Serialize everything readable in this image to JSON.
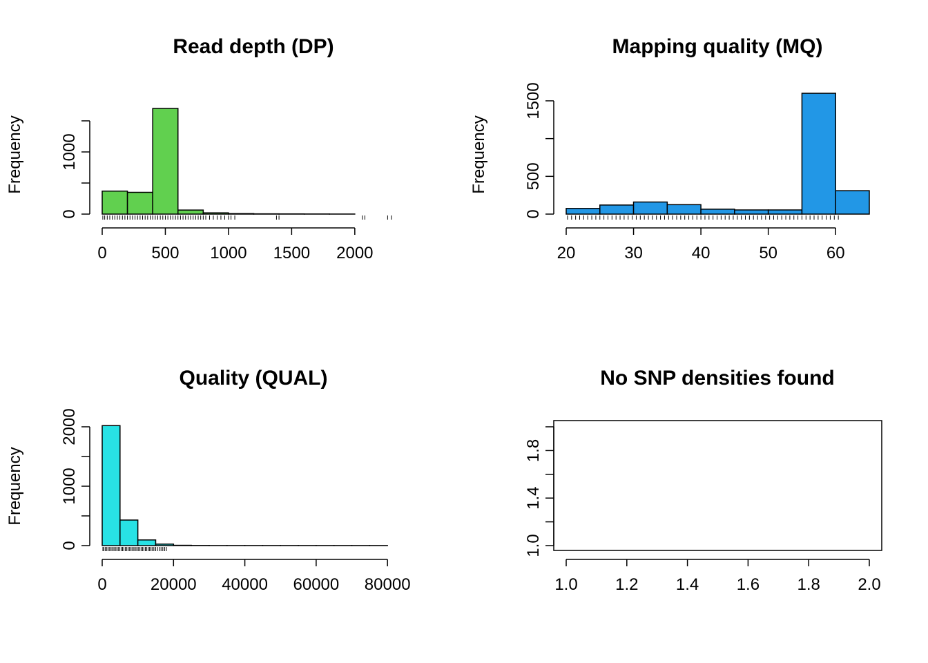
{
  "chart_data": [
    {
      "type": "bar",
      "title": "Read depth (DP)",
      "xlabel": "",
      "ylabel": "Frequency",
      "color": "#61d04f",
      "bin_edges": [
        0,
        200,
        400,
        600,
        800,
        1000,
        1200,
        1400,
        1600,
        1800,
        2000
      ],
      "values": [
        370,
        350,
        1700,
        65,
        20,
        8,
        4,
        3,
        2,
        1
      ],
      "xlim": [
        0,
        2400
      ],
      "ylim": [
        0,
        1700
      ],
      "x_ticks": [
        0,
        500,
        1000,
        1500,
        2000
      ],
      "x_tick_labels": [
        "0",
        "500",
        "1000",
        "1500",
        "2000"
      ],
      "y_ticks": [
        0,
        500,
        1000,
        1500
      ],
      "y_tick_labels": [
        "0",
        "",
        "1000",
        ""
      ],
      "rug": [
        5,
        20,
        40,
        60,
        80,
        100,
        120,
        140,
        160,
        180,
        200,
        220,
        240,
        260,
        280,
        300,
        320,
        340,
        360,
        380,
        400,
        420,
        440,
        460,
        480,
        500,
        520,
        540,
        560,
        580,
        600,
        620,
        640,
        660,
        680,
        700,
        720,
        740,
        760,
        780,
        800,
        820,
        850,
        880,
        910,
        940,
        970,
        1000,
        1020,
        1050,
        1380,
        1400,
        2060,
        2080,
        2260,
        2290
      ]
    },
    {
      "type": "bar",
      "title": "Mapping quality (MQ)",
      "xlabel": "",
      "ylabel": "Frequency",
      "color": "#2297e6",
      "bin_edges": [
        20,
        25,
        30,
        35,
        40,
        45,
        50,
        55,
        60,
        65
      ],
      "values": [
        75,
        120,
        160,
        125,
        65,
        55,
        55,
        1600,
        310
      ],
      "xlim": [
        20,
        65
      ],
      "ylim": [
        0,
        1500
      ],
      "x_ticks": [
        20,
        30,
        40,
        50,
        60
      ],
      "x_tick_labels": [
        "20",
        "30",
        "40",
        "50",
        "60"
      ],
      "y_ticks": [
        0,
        500,
        1000,
        1500
      ],
      "y_tick_labels": [
        "0",
        "500",
        "",
        "1500"
      ],
      "rug": [
        20.2,
        20.8,
        21.4,
        22,
        22.6,
        23.2,
        23.8,
        24.4,
        25,
        25.6,
        26.2,
        26.8,
        27.4,
        28,
        28.6,
        29.2,
        29.8,
        30.4,
        31,
        31.6,
        32.2,
        32.8,
        33.4,
        34,
        34.6,
        35.2,
        35.8,
        36.4,
        37,
        37.6,
        38.2,
        38.8,
        39.4,
        40,
        40.6,
        41.2,
        41.8,
        42.4,
        43,
        43.6,
        44.2,
        44.8,
        45.4,
        46,
        46.6,
        47.2,
        47.8,
        48.4,
        49,
        49.6,
        50.2,
        50.8,
        51.4,
        52,
        52.6,
        53.2,
        53.8,
        54.4,
        55,
        55.6,
        56.2,
        56.8,
        57.4,
        58,
        58.6,
        59.2,
        59.8,
        60.4
      ]
    },
    {
      "type": "bar",
      "title": "Quality (QUAL)",
      "xlabel": "",
      "ylabel": "Frequency",
      "color": "#28e2e5",
      "bin_edges": [
        0,
        5000,
        10000,
        15000,
        20000,
        25000,
        30000,
        35000,
        40000,
        45000,
        50000,
        55000,
        60000,
        65000,
        70000,
        75000,
        80000
      ],
      "values": [
        2020,
        430,
        95,
        25,
        5,
        2,
        1,
        1,
        1,
        1,
        1,
        1,
        1,
        1,
        1,
        1
      ],
      "xlim": [
        0,
        85000
      ],
      "ylim": [
        0,
        2000
      ],
      "x_ticks": [
        0,
        20000,
        40000,
        60000,
        80000
      ],
      "x_tick_labels": [
        "0",
        "20000",
        "40000",
        "60000",
        "80000"
      ],
      "y_ticks": [
        0,
        500,
        1000,
        1500,
        2000
      ],
      "y_tick_labels": [
        "0",
        "",
        "1000",
        "",
        "2000"
      ],
      "rug": [
        200,
        500,
        900,
        1300,
        1700,
        2100,
        2500,
        2900,
        3300,
        3700,
        4100,
        4500,
        4900,
        5300,
        5700,
        6100,
        6500,
        6900,
        7300,
        7700,
        8100,
        8500,
        8900,
        9300,
        9700,
        10100,
        10500,
        10900,
        11300,
        11700,
        12100,
        12500,
        12900,
        13300,
        13700,
        14100,
        14500,
        15000,
        15500,
        16000,
        16500,
        17000,
        17500,
        18000
      ]
    },
    {
      "type": "scatter",
      "title": "No SNP densities found",
      "xlabel": "",
      "ylabel": "",
      "values": [],
      "xlim": [
        1.0,
        2.0
      ],
      "ylim": [
        1.0,
        2.0
      ],
      "x_ticks": [
        1.0,
        1.2,
        1.4,
        1.6,
        1.8,
        2.0
      ],
      "x_tick_labels": [
        "1.0",
        "1.2",
        "1.4",
        "1.6",
        "1.8",
        "2.0"
      ],
      "y_ticks": [
        1.0,
        1.2,
        1.4,
        1.6,
        1.8,
        2.0
      ],
      "y_tick_labels": [
        "1.0",
        "",
        "1.4",
        "",
        "1.8",
        ""
      ],
      "box": true
    }
  ]
}
